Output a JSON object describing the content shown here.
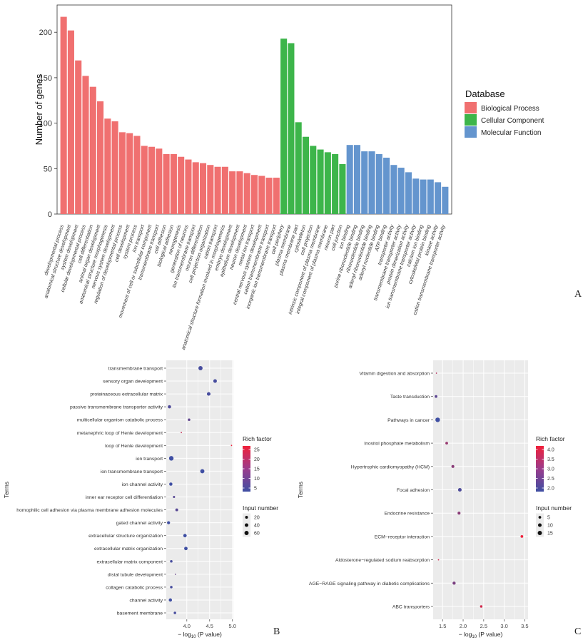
{
  "chart_data": [
    {
      "panel": "A",
      "type": "bar",
      "ylabel": "Number of genes",
      "ylim": [
        0,
        230
      ],
      "yticks": [
        0,
        50,
        100,
        150,
        200
      ],
      "grid": false,
      "legend_title": "Database",
      "legend_position": "right",
      "series": [
        {
          "name": "Biological Process",
          "color": "#F07070",
          "categories": [
            "developmental process",
            "anatomical structure development",
            "system development",
            "cellular developmental process",
            "cell differentiation",
            "animal organ development",
            "anatomical structure morphogenesis",
            "nervous system development",
            "regulation of developmental process",
            "cell development",
            "system process",
            "ion transport",
            "movement of cell or subcellular component",
            "transmembrane transport",
            "cell adhesion",
            "biological adhesion",
            "neurogenesis",
            "generation of neurons",
            "ion transmembrane transport",
            "neuron differentiation",
            "cell projection organization",
            "cation transport",
            "anatomical structure formation involved in morphogenesis",
            "embryo development",
            "epithelium development",
            "neuron development",
            "metal ion transport",
            "central nervous system development",
            "cation transmembrane transport",
            "inorganic ion transmembrane transport"
          ],
          "values": [
            217,
            202,
            169,
            152,
            140,
            124,
            105,
            102,
            90,
            89,
            86,
            75,
            74,
            72,
            66,
            66,
            63,
            60,
            57,
            56,
            54,
            52,
            52,
            47,
            47,
            45,
            43,
            42,
            40,
            40
          ]
        },
        {
          "name": "Cellular Component",
          "color": "#3DB54A",
          "categories": [
            "cell periphery",
            "plasma membrane",
            "plasma membrane part",
            "cytoskeleton",
            "cell projection",
            "intrinsic component of plasma membrane",
            "integral component of plasma membrane",
            "neuron part",
            "cell junction"
          ],
          "values": [
            193,
            188,
            101,
            85,
            75,
            71,
            68,
            66,
            55
          ]
        },
        {
          "name": "Molecular Function",
          "color": "#6495CE",
          "categories": [
            "ion binding",
            "purine ribonucleotide binding",
            "ribonucleotide binding",
            "adenyl ribonucleotide binding",
            "adenyl nucleotide binding",
            "ATP binding",
            "transporter activity",
            "transmembrane transporter activity",
            "protein dimerization activity",
            "ion transmembrane transporter activity",
            "calcium ion binding",
            "cytoskeletal protein binding",
            "kinase activity",
            "cation transmembrane transporter activity"
          ],
          "values": [
            76,
            76,
            69,
            69,
            66,
            62,
            54,
            51,
            46,
            39,
            38,
            38,
            35,
            30
          ]
        }
      ]
    },
    {
      "panel": "B",
      "type": "scatter",
      "xlabel_pre": "− log",
      "xlabel_sub": "10",
      "xlabel_post": " (P value)",
      "ylabel": "Terms",
      "xlim": [
        3.55,
        5.02
      ],
      "xticks": [
        4.0,
        4.5,
        5.0
      ],
      "xtick_labels": [
        "4.0",
        "4.5",
        "5.0"
      ],
      "terms": [
        "transmembrane transport",
        "sensory organ development",
        "proteinaceous extracellular matrix",
        "passive transmembrane transporter activity",
        "multicellular organism catabolic process",
        "metanephric loop of Henle development",
        "loop of Henle development",
        "ion transport",
        "ion transmembrane transport",
        "ion channel activity",
        "inner ear receptor cell differentiation",
        "homophilic cell adhesion via plasma membrane adhesion molecules",
        "gated channel activity",
        "extracellular structure organization",
        "extracellular matrix organization",
        "extracellular matrix component",
        "distal tubule development",
        "collagen catabolic process",
        "channel activity",
        "basement membrane"
      ],
      "x": [
        4.3,
        4.62,
        4.48,
        3.62,
        4.05,
        3.88,
        4.98,
        3.66,
        4.34,
        3.65,
        3.72,
        3.78,
        3.6,
        3.96,
        3.98,
        3.66,
        3.75,
        3.66,
        3.64,
        3.74
      ],
      "rich_factor": [
        5,
        5,
        5,
        6,
        8,
        20,
        25,
        4,
        4,
        4,
        7,
        7,
        4,
        4,
        4,
        5,
        9,
        5,
        4,
        5
      ],
      "input_number": [
        60,
        40,
        40,
        30,
        15,
        5,
        5,
        75,
        60,
        30,
        10,
        20,
        25,
        35,
        35,
        15,
        5,
        15,
        30,
        15
      ],
      "legend_color_title": "Rich factor",
      "color_ticks": [
        "25",
        "20",
        "15",
        "10",
        "5"
      ],
      "legend_size_title": "Input number",
      "size_ticks": [
        "20",
        "40",
        "60"
      ],
      "size_values": [
        20,
        40,
        60
      ]
    },
    {
      "panel": "C",
      "type": "scatter",
      "xlabel_pre": "− log",
      "xlabel_sub": "10",
      "xlabel_post": " (P value)",
      "ylabel": "Terms",
      "xlim": [
        1.27,
        3.58
      ],
      "xticks": [
        1.5,
        2.0,
        2.5,
        3.0,
        3.5
      ],
      "xtick_labels": [
        "1.5",
        "2.0",
        "2.5",
        "3.0",
        "3.5"
      ],
      "terms": [
        "Vitamin digestion and absorption",
        "Taste transduction",
        "Pathways in cancer",
        "Inositol phosphate metabolism",
        "Hypertrophic cardiomyopathy (HCM)",
        "Focal adhesion",
        "Endocrine resistance",
        "ECM−receptor interaction",
        "Aldosterone−regulated sodium reabsorption",
        "AGE−RAGE signaling pathway in diabetic complications",
        "ABC transporters"
      ],
      "x": [
        1.35,
        1.34,
        1.38,
        1.6,
        1.75,
        1.92,
        1.9,
        3.43,
        1.4,
        1.78,
        2.44
      ],
      "rich_factor": [
        3.4,
        2.2,
        1.8,
        3.0,
        2.8,
        2.0,
        2.8,
        4.2,
        3.8,
        2.6,
        3.8
      ],
      "input_number": [
        2,
        5,
        18,
        5,
        6,
        10,
        6,
        5,
        2,
        7,
        4
      ],
      "legend_color_title": "Rich factor",
      "color_ticks": [
        "4.0",
        "3.5",
        "3.0",
        "2.5",
        "2.0"
      ],
      "legend_size_title": "Input number",
      "size_ticks": [
        "5",
        "10",
        "15"
      ],
      "size_values": [
        5,
        10,
        15
      ]
    }
  ],
  "labels": {
    "panel_a": "A",
    "panel_b": "B",
    "panel_c": "C"
  },
  "colors": {
    "panel_bg": "#EBEBEB",
    "grid": "#FFFFFF",
    "low": "#3F4FA3",
    "high": "#F0203A"
  }
}
